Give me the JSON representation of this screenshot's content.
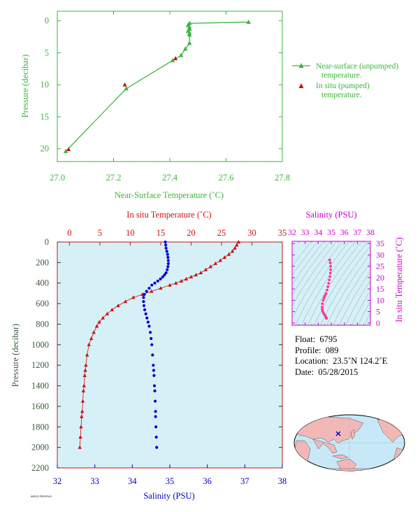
{
  "colors": {
    "green": "#3cb43c",
    "red": "#cc1111",
    "blue": "#0000cc",
    "magenta": "#cc00cc",
    "pink": "#ff3399",
    "plot_bg": "#d6f0f8",
    "map_ocean": "#c7e9f7",
    "map_land": "#f2b8b8"
  },
  "chart_data": [
    {
      "type": "line",
      "xlabel": "Near-Surface Temperature (˚C)",
      "ylabel": "Pressure (decibar)",
      "xlim": [
        27.0,
        27.8
      ],
      "ylim": [
        22,
        -1.5
      ],
      "xticks": [
        "27.0",
        "27.2",
        "27.4",
        "27.6",
        "27.8"
      ],
      "yticks": [
        "0",
        "5",
        "10",
        "15",
        "20"
      ],
      "legend_position": "right",
      "series": [
        {
          "name": "Near-surface (unpumped) temperature.",
          "marker": "triangle",
          "color": "#3cb43c",
          "x": [
            27.68,
            27.47,
            27.465,
            27.47,
            27.47,
            27.465,
            27.47,
            27.47,
            27.47,
            27.455,
            27.44,
            27.41,
            27.245,
            27.03
          ],
          "y": [
            0.2,
            0.4,
            0.7,
            1.0,
            1.3,
            1.6,
            1.9,
            2.2,
            3.5,
            4.4,
            5.4,
            6.2,
            10.6,
            20.4
          ]
        },
        {
          "name": "In situ (pumped) temperature.",
          "marker": "triangle",
          "color": "#cc1111",
          "x": [
            27.42,
            27.24,
            27.04
          ],
          "y": [
            5.9,
            10.0,
            20.1
          ]
        }
      ]
    },
    {
      "type": "scatter",
      "ylabel": "Pressure (decibar)",
      "ylim": [
        2200,
        0
      ],
      "yticks": [
        "0",
        "200",
        "400",
        "600",
        "800",
        "1000",
        "1200",
        "1400",
        "1600",
        "1800",
        "2000",
        "2200"
      ],
      "top_axis": {
        "label": "In situ Temperature (˚C)",
        "lim": [
          -2,
          35
        ],
        "ticks": [
          "0",
          "5",
          "10",
          "15",
          "20",
          "25",
          "30",
          "35"
        ]
      },
      "bottom_axis": {
        "label": "Salinity (PSU)",
        "lim": [
          32,
          38
        ],
        "ticks": [
          "32",
          "33",
          "34",
          "35",
          "36",
          "37",
          "38"
        ]
      },
      "series": [
        {
          "name": "In situ Temperature (˚C)",
          "axis": "top",
          "color": "#cc1111",
          "marker": "triangle",
          "x": [
            27.8,
            27.5,
            27.2,
            26.8,
            26.2,
            25.5,
            24.8,
            24.0,
            23.2,
            22.4,
            21.6,
            20.8,
            20.0,
            19.2,
            18.4,
            17.5,
            16.5,
            15.0,
            13.5,
            12.0,
            10.5,
            9.2,
            8.0,
            7.0,
            6.2,
            5.5,
            4.9,
            4.5,
            4.0,
            3.6,
            3.2,
            2.9,
            2.7,
            2.6,
            2.5,
            2.4,
            2.3,
            2.2,
            2.1,
            2.0,
            1.9,
            1.8,
            1.7
          ],
          "y": [
            0,
            30,
            60,
            90,
            120,
            150,
            180,
            210,
            240,
            270,
            300,
            320,
            340,
            360,
            380,
            400,
            420,
            450,
            480,
            510,
            540,
            580,
            620,
            660,
            700,
            740,
            780,
            820,
            880,
            940,
            1000,
            1100,
            1200,
            1250,
            1300,
            1400,
            1450,
            1550,
            1650,
            1700,
            1800,
            1900,
            2000
          ]
        },
        {
          "name": "Salinity (PSU)",
          "axis": "bottom",
          "color": "#0000cc",
          "marker": "circle",
          "x": [
            34.88,
            34.89,
            34.9,
            34.92,
            34.94,
            34.95,
            34.96,
            34.96,
            34.95,
            34.93,
            34.9,
            34.86,
            34.81,
            34.75,
            34.68,
            34.6,
            34.52,
            34.45,
            34.38,
            34.32,
            34.3,
            34.3,
            34.31,
            34.33,
            34.36,
            34.39,
            34.42,
            34.45,
            34.48,
            34.5,
            34.52,
            34.54,
            34.56,
            34.57,
            34.58,
            34.59,
            34.6,
            34.61,
            34.62,
            34.62,
            34.63,
            34.64,
            34.65
          ],
          "y": [
            0,
            30,
            60,
            90,
            120,
            150,
            180,
            210,
            240,
            270,
            300,
            320,
            340,
            360,
            380,
            400,
            420,
            450,
            480,
            510,
            540,
            580,
            620,
            660,
            700,
            740,
            780,
            820,
            880,
            940,
            1000,
            1100,
            1200,
            1250,
            1300,
            1400,
            1450,
            1550,
            1650,
            1700,
            1800,
            1900,
            2000
          ]
        }
      ]
    },
    {
      "type": "scatter",
      "xlabel": "Salinity (PSU)",
      "ylabel": "In situ Temperature (˚C)",
      "xlim": [
        32,
        38
      ],
      "ylim": [
        -1,
        36
      ],
      "xticks": [
        "32",
        "33",
        "34",
        "35",
        "36",
        "37",
        "38"
      ],
      "yticks": [
        "0",
        "5",
        "10",
        "15",
        "20",
        "25",
        "30",
        "35"
      ],
      "series": [
        {
          "color": "#ff3399",
          "x": [
            34.88,
            34.92,
            34.95,
            34.95,
            34.93,
            34.9,
            34.85,
            34.8,
            34.74,
            34.68,
            34.6,
            34.52,
            34.45,
            34.38,
            34.32,
            34.3,
            34.31,
            34.35,
            34.42,
            34.5,
            34.56,
            34.6,
            34.63
          ],
          "y": [
            27.8,
            26.5,
            25.0,
            23.5,
            22.0,
            20.5,
            19.0,
            17.5,
            16.0,
            14.5,
            13.0,
            12.0,
            11.0,
            10.0,
            8.5,
            7.0,
            6.0,
            5.0,
            4.2,
            3.5,
            3.0,
            2.5,
            2.0
          ]
        }
      ]
    }
  ],
  "info": {
    "float_label": "Float:",
    "float_value": "6795",
    "profile_label": "Profile:",
    "profile_value": "089",
    "location_label": "Location:",
    "location_value": "23.5˚N  124.2˚E",
    "date_label": "Date:",
    "date_value": "05/28/2015"
  },
  "map": {
    "marker_icon": "float-location-cross-icon",
    "marker_lon": 124.2,
    "marker_lat": 23.5
  },
  "footer": {
    "text": "ARGO PROFILE"
  }
}
